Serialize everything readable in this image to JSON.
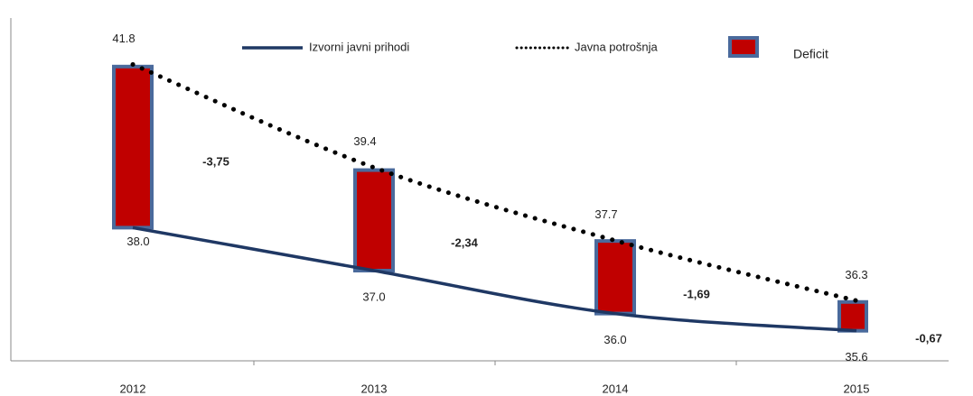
{
  "chart_data": {
    "type": "bar-line",
    "categories": [
      "2012",
      "2013",
      "2014",
      "2015"
    ],
    "series": [
      {
        "name": "Izvorni javni prihodi",
        "color": "#1f3864",
        "type": "line",
        "style": "solid",
        "values": [
          38.0,
          37.0,
          36.0,
          35.6
        ],
        "value_labels": [
          "38.0",
          "37.0",
          "36.0",
          "35.6"
        ]
      },
      {
        "name": "Javna potrošnja",
        "color": "#000000",
        "type": "line",
        "style": "dotted",
        "values": [
          41.8,
          39.4,
          37.7,
          36.3
        ],
        "value_labels": [
          "41.8",
          "39.4",
          "37.7",
          "36.3"
        ]
      },
      {
        "name": "Deficit",
        "color": "#c00000",
        "edge_color": "#4a6a9c",
        "type": "bar",
        "values": [
          -3.75,
          -2.34,
          -1.69,
          -0.67
        ],
        "value_labels": [
          "-3,75",
          "-2,34",
          "-1,69",
          "-0,67"
        ]
      }
    ],
    "ylim": [
      34.9,
      43.3
    ]
  }
}
